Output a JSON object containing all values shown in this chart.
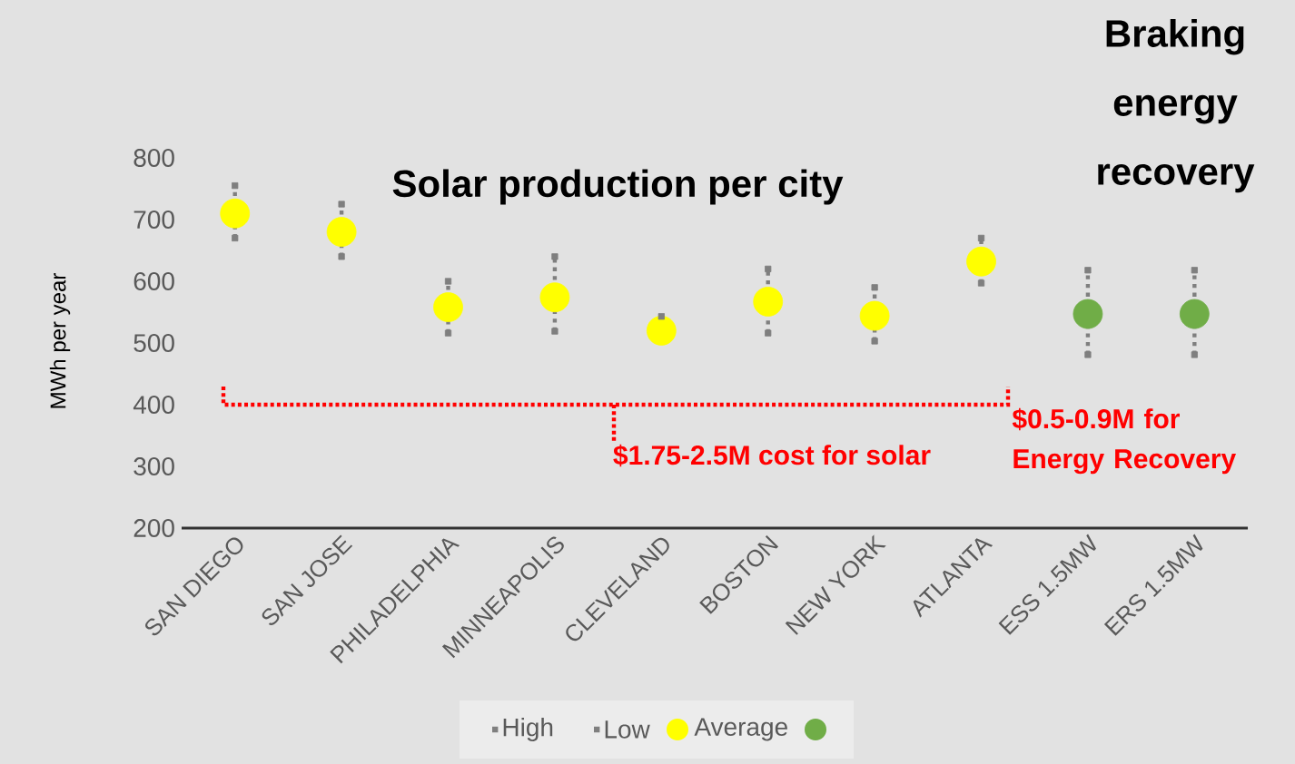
{
  "chart_data": {
    "type": "scatter",
    "title": "Solar production  per city",
    "ylabel": "MWh per year",
    "categories": [
      "SAN DIEGO",
      "SAN JOSE",
      "PHILADELPHIA",
      "MINNEAPOLIS",
      "CLEVELAND",
      "BOSTON",
      "NEW YORK",
      "ATLANTA",
      "ESS 1.5MW",
      "ERS 1.5MW"
    ],
    "series": [
      {
        "name": "High",
        "color": "#7f7f7f",
        "marker": "square",
        "values": [
          755,
          725,
          600,
          640,
          543,
          620,
          590,
          670,
          618,
          618
        ]
      },
      {
        "name": "Low",
        "color": "#7f7f7f",
        "marker": "square",
        "values": [
          670,
          640,
          516,
          519,
          null,
          516,
          503,
          597,
          481,
          481
        ]
      },
      {
        "name": "Average",
        "color": "#ffff00",
        "marker": "circle",
        "values": [
          710,
          680,
          558,
          574,
          520,
          567,
          544,
          632,
          null,
          null
        ]
      },
      {
        "color": "#70ad47",
        "marker": "circle",
        "values": [
          null,
          null,
          null,
          null,
          null,
          null,
          null,
          null,
          547,
          547
        ]
      }
    ],
    "ylim": [
      200,
      800
    ],
    "yticks": [
      200,
      300,
      400,
      500,
      600,
      700,
      800
    ],
    "grid": false,
    "legend": "bottom",
    "annotations": [
      "Braking energy recovery",
      "$1.75-2.5M cost for solar",
      "$0.5-0.9M for Energy Recovery"
    ]
  }
}
